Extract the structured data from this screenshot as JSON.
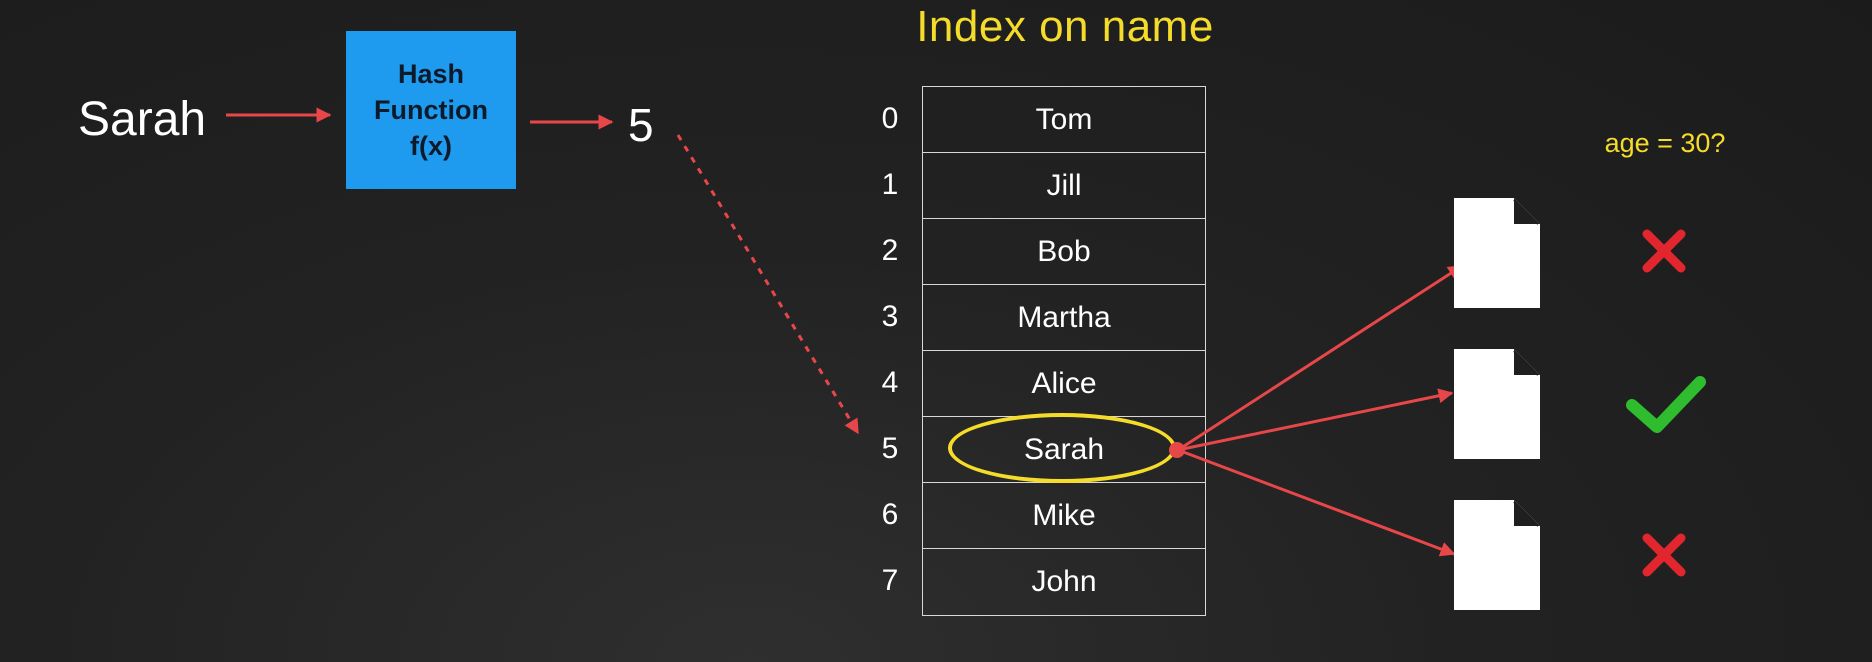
{
  "title": "Index on name",
  "input_key": "Sarah",
  "hash_function": {
    "line1": "Hash",
    "line2": "Function",
    "line3": "f(x)"
  },
  "hash_output": "5",
  "index_table": {
    "rows": [
      {
        "index": "0",
        "name": "Tom"
      },
      {
        "index": "1",
        "name": "Jill"
      },
      {
        "index": "2",
        "name": "Bob"
      },
      {
        "index": "3",
        "name": "Martha"
      },
      {
        "index": "4",
        "name": "Alice"
      },
      {
        "index": "5",
        "name": "Sarah"
      },
      {
        "index": "6",
        "name": "Mike"
      },
      {
        "index": "7",
        "name": "John"
      }
    ],
    "highlighted_index": 5
  },
  "query_label": "age = 30?",
  "documents": [
    {
      "icon": "document-icon",
      "result_icon": "cross-icon",
      "matches": false
    },
    {
      "icon": "document-icon",
      "result_icon": "check-icon",
      "matches": true
    },
    {
      "icon": "document-icon",
      "result_icon": "cross-icon",
      "matches": false
    }
  ],
  "colors": {
    "background": "#1f1f1f",
    "title": "#f5dc2a",
    "hash_box": "#1e9bef",
    "arrow": "#e8474a",
    "highlight": "#f5dc2a",
    "check": "#2fbd2f",
    "cross": "#e2262d"
  }
}
